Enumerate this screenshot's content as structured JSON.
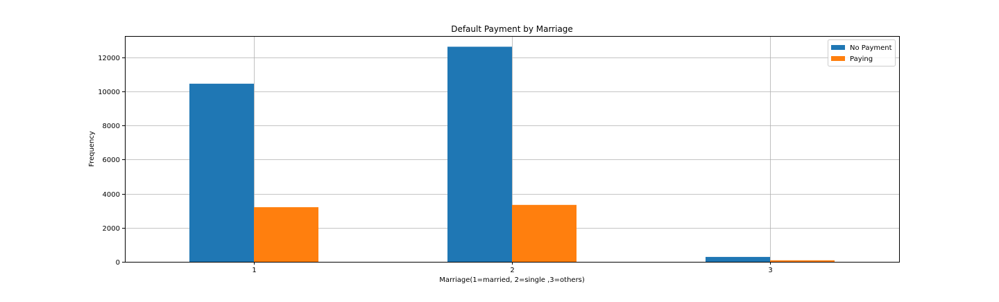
{
  "chart_data": {
    "type": "bar",
    "title": "Default Payment by Marriage",
    "xlabel": "Marriage(1=married, 2=single ,3=others)",
    "ylabel": "Frequency",
    "categories": [
      "1",
      "2",
      "3"
    ],
    "series": [
      {
        "name": "No Payment",
        "color": "#1f77b4",
        "values": [
          10453,
          12623,
          288
        ]
      },
      {
        "name": "Paying",
        "color": "#ff7f0e",
        "values": [
          3206,
          3341,
          89
        ]
      }
    ],
    "ylim": [
      0,
      13251
    ],
    "yticks": [
      0,
      2000,
      4000,
      6000,
      8000,
      10000,
      12000
    ],
    "grid": true,
    "legend_position": "top-right"
  }
}
